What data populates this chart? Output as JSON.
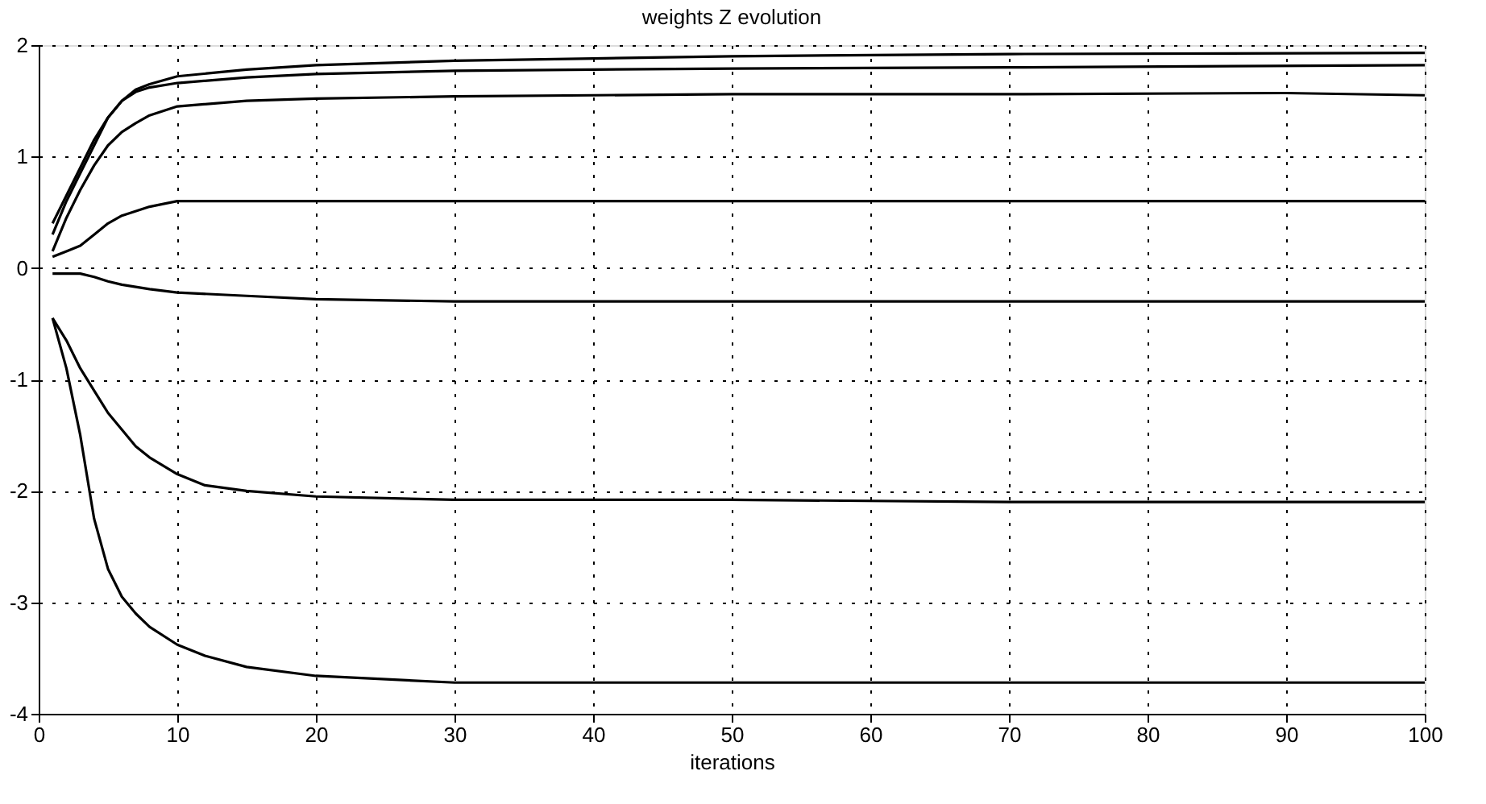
{
  "chart_data": {
    "type": "line",
    "title": "weights Z evolution",
    "xlabel": "iterations",
    "xlim": [
      0,
      100
    ],
    "ylim": [
      -4,
      2
    ],
    "xticks": [
      0,
      10,
      20,
      30,
      40,
      50,
      60,
      70,
      80,
      90,
      100
    ],
    "yticks": [
      -4,
      -3,
      -2,
      -1,
      0,
      1,
      2
    ],
    "grid": true,
    "marker": "none",
    "line_style": "solid",
    "series": [
      {
        "color": "#000000",
        "x": [
          1,
          2,
          3,
          4,
          5,
          6,
          7,
          8,
          10,
          15,
          20,
          30,
          40,
          50,
          70,
          100
        ],
        "values": [
          0.4,
          0.65,
          0.9,
          1.15,
          1.35,
          1.5,
          1.6,
          1.65,
          1.72,
          1.78,
          1.82,
          1.86,
          1.88,
          1.9,
          1.92,
          1.93
        ]
      },
      {
        "color": "#000000",
        "x": [
          1,
          2,
          3,
          4,
          5,
          6,
          7,
          8,
          10,
          15,
          20,
          30,
          40,
          50,
          70,
          100
        ],
        "values": [
          0.3,
          0.6,
          0.85,
          1.1,
          1.35,
          1.5,
          1.58,
          1.62,
          1.66,
          1.71,
          1.74,
          1.77,
          1.78,
          1.79,
          1.8,
          1.82
        ]
      },
      {
        "color": "#000000",
        "x": [
          1,
          2,
          3,
          4,
          5,
          6,
          7,
          8,
          10,
          15,
          20,
          30,
          40,
          50,
          70,
          90,
          100
        ],
        "values": [
          0.15,
          0.45,
          0.7,
          0.92,
          1.1,
          1.22,
          1.3,
          1.37,
          1.45,
          1.5,
          1.52,
          1.54,
          1.55,
          1.56,
          1.56,
          1.57,
          1.55
        ]
      },
      {
        "color": "#000000",
        "x": [
          1,
          2,
          3,
          4,
          5,
          6,
          8,
          10,
          15,
          20,
          40,
          60,
          80,
          100
        ],
        "values": [
          0.1,
          0.15,
          0.2,
          0.3,
          0.4,
          0.47,
          0.55,
          0.6,
          0.6,
          0.6,
          0.6,
          0.6,
          0.6,
          0.6
        ]
      },
      {
        "color": "#000000",
        "x": [
          1,
          2,
          3,
          4,
          5,
          6,
          8,
          10,
          15,
          20,
          30,
          50,
          70,
          100
        ],
        "values": [
          -0.05,
          -0.05,
          -0.05,
          -0.08,
          -0.12,
          -0.15,
          -0.19,
          -0.22,
          -0.25,
          -0.28,
          -0.3,
          -0.3,
          -0.3,
          -0.3
        ]
      },
      {
        "color": "#000000",
        "x": [
          1,
          2,
          3,
          4,
          5,
          6,
          7,
          8,
          10,
          12,
          15,
          20,
          30,
          50,
          70,
          90,
          100
        ],
        "values": [
          -0.45,
          -0.65,
          -0.9,
          -1.1,
          -1.3,
          -1.45,
          -1.6,
          -1.7,
          -1.85,
          -1.95,
          -2.0,
          -2.05,
          -2.08,
          -2.08,
          -2.1,
          -2.1,
          -2.1
        ]
      },
      {
        "color": "#000000",
        "x": [
          1,
          2,
          3,
          4,
          5,
          6,
          7,
          8,
          10,
          12,
          15,
          20,
          30,
          50,
          70,
          100
        ],
        "values": [
          -0.45,
          -0.9,
          -1.5,
          -2.25,
          -2.7,
          -2.95,
          -3.1,
          -3.22,
          -3.38,
          -3.48,
          -3.58,
          -3.66,
          -3.72,
          -3.72,
          -3.72,
          -3.72
        ]
      }
    ]
  }
}
